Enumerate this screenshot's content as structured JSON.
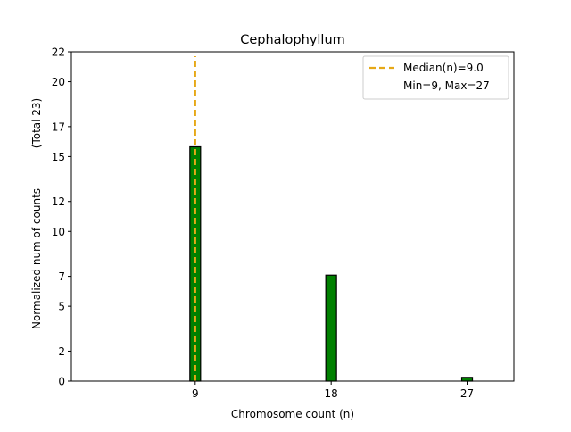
{
  "chart_data": {
    "type": "bar",
    "title": "Cephalophyllum",
    "xlabel": "Chromosome count (n)",
    "ylabel": "Normalized num of counts",
    "ylabel2": "(Total 23)",
    "xlim": [
      0.8,
      30.1
    ],
    "ylim": [
      0,
      22
    ],
    "x_ticks": [
      9,
      18,
      27
    ],
    "y_ticks": [
      0,
      2,
      5,
      7,
      10,
      12,
      15,
      17,
      20,
      22
    ],
    "bars": [
      {
        "x": 9,
        "value": 15.65
      },
      {
        "x": 18,
        "value": 7.08
      },
      {
        "x": 27,
        "value": 0.25
      }
    ],
    "bar_color": "#008000",
    "median": {
      "x": 9.0,
      "color": "#e6a817"
    },
    "legend": {
      "position": "top-right",
      "entries": [
        "Median(n)=9.0",
        "Min=9, Max=27"
      ]
    }
  }
}
